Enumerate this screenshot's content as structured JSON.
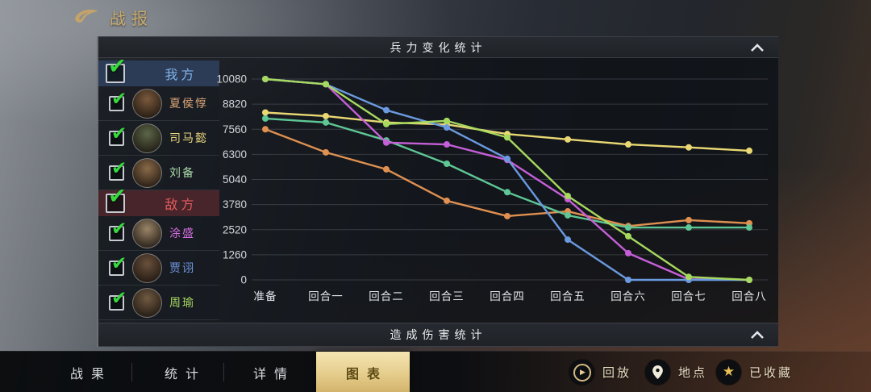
{
  "app": {
    "title": "战报"
  },
  "sections": {
    "troops_title": "兵力变化统计",
    "damage_title": "造成伤害统计"
  },
  "sidebar": {
    "groups": [
      {
        "key": "ours",
        "label": "我方",
        "label_color": "#7fb2e8",
        "bg": "#2d3c56",
        "checked": true,
        "members": [
          {
            "key": "xiahoudun",
            "name": "夏侯惇",
            "name_color": "#dfa878",
            "avatar_color": "#7a5a3c",
            "checked": true
          },
          {
            "key": "simayi",
            "name": "司马懿",
            "name_color": "#e7d47e",
            "avatar_color": "#5c6648",
            "checked": true
          },
          {
            "key": "liubei",
            "name": "刘备",
            "name_color": "#a8d8a8",
            "avatar_color": "#8a6a48",
            "checked": true
          }
        ]
      },
      {
        "key": "enemy",
        "label": "敌方",
        "label_color": "#e25c5c",
        "bg": "#48242b",
        "checked": true,
        "members": [
          {
            "key": "tusheng",
            "name": "涂盛",
            "name_color": "#d36ddf",
            "avatar_color": "#9a8468",
            "checked": true
          },
          {
            "key": "jiaxu",
            "name": "贾诩",
            "name_color": "#7098e2",
            "avatar_color": "#6a503c",
            "checked": true
          },
          {
            "key": "zhouyu",
            "name": "周瑜",
            "name_color": "#a8d860",
            "avatar_color": "#705a42",
            "checked": true
          }
        ]
      }
    ]
  },
  "chart_data": {
    "type": "line",
    "title": "兵力变化统计",
    "x": [
      "准备",
      "回合一",
      "回合二",
      "回合三",
      "回合四",
      "回合五",
      "回合六",
      "回合七",
      "回合八"
    ],
    "y_ticks": [
      10080,
      8820,
      7560,
      6300,
      5040,
      3780,
      2520,
      1260,
      0
    ],
    "ylim": [
      0,
      10080
    ],
    "grid": true,
    "legend_position": "left-sidebar",
    "series": [
      {
        "name": "夏侯惇",
        "color": "#e09050",
        "values": [
          7560,
          6400,
          5550,
          3970,
          3200,
          3440,
          2700,
          3000,
          2840
        ]
      },
      {
        "name": "司马懿",
        "color": "#e9d873",
        "values": [
          8400,
          8220,
          7900,
          7800,
          7320,
          7050,
          6800,
          6650,
          6480
        ]
      },
      {
        "name": "刘备",
        "color": "#5fc795",
        "values": [
          8100,
          7900,
          7000,
          5830,
          4400,
          3240,
          2630,
          2630,
          2630
        ]
      },
      {
        "name": "涂盛",
        "color": "#c55fd8",
        "values": [
          10080,
          9820,
          6890,
          6800,
          6020,
          4050,
          1340,
          30,
          0
        ]
      },
      {
        "name": "贾诩",
        "color": "#6b9ae0",
        "values": [
          10080,
          9820,
          8520,
          7650,
          6080,
          2020,
          0,
          0,
          0
        ]
      },
      {
        "name": "周瑜",
        "color": "#a6d95e",
        "values": [
          10080,
          9820,
          7820,
          7980,
          7150,
          4210,
          2190,
          150,
          0
        ]
      }
    ]
  },
  "tabbar": {
    "tabs": [
      {
        "key": "battle-results",
        "label": "战果",
        "selected": false
      },
      {
        "key": "statistics",
        "label": "统计",
        "selected": false
      },
      {
        "key": "details",
        "label": "详情",
        "selected": false
      },
      {
        "key": "charts",
        "label": "图表",
        "selected": true
      }
    ],
    "actions": [
      {
        "key": "replay",
        "label": "回放",
        "icon": "replay-icon"
      },
      {
        "key": "location",
        "label": "地点",
        "icon": "location-pin-icon"
      },
      {
        "key": "favorited",
        "label": "已收藏",
        "icon": "star-icon"
      }
    ]
  }
}
